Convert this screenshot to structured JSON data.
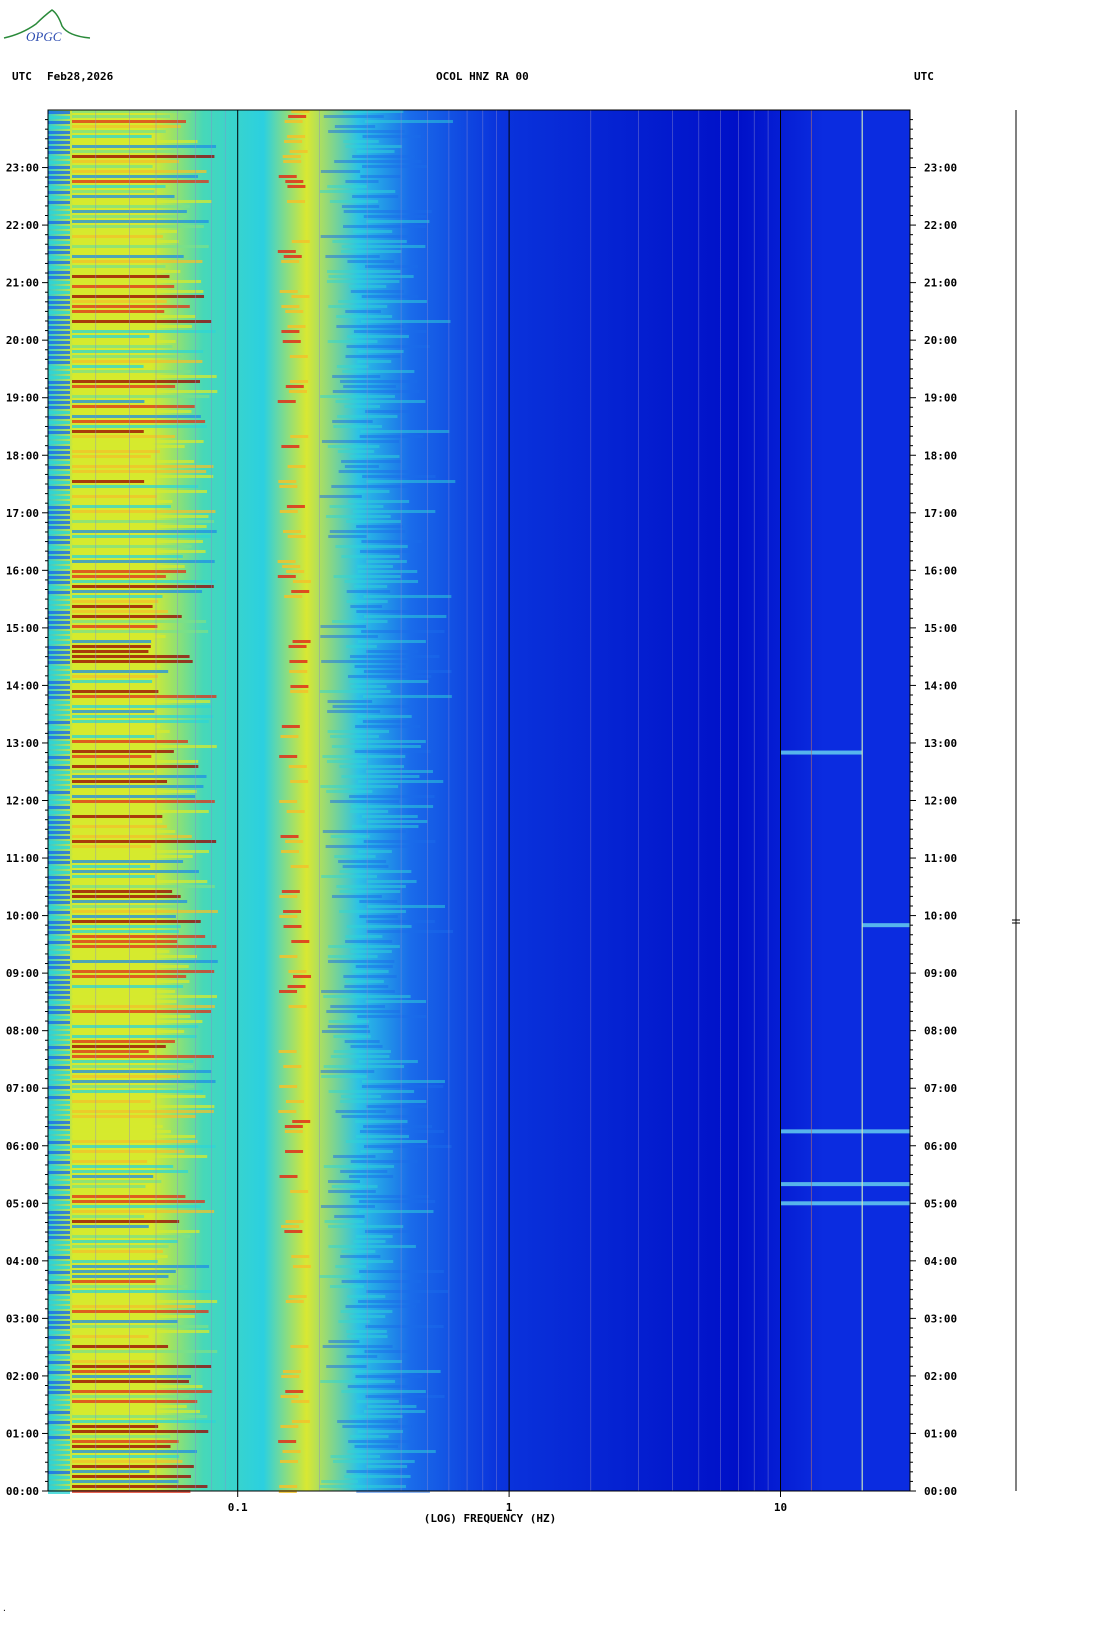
{
  "header": {
    "left_label": "UTC",
    "date": "Feb28,2026",
    "station": "OCOL HNZ RA 00",
    "right_label": "UTC"
  },
  "logo": {
    "text": "OPGC"
  },
  "chart_data": {
    "type": "heatmap",
    "title": "OCOL HNZ RA 00",
    "xlabel": "(LOG) FREQUENCY (HZ)",
    "x_scale": "log",
    "x_ticks": [
      {
        "value": 0.1,
        "label": "0.1"
      },
      {
        "value": 1,
        "label": "1"
      },
      {
        "value": 10,
        "label": "10"
      }
    ],
    "xlim": [
      0.02,
      30
    ],
    "ylabel": "UTC",
    "y_ticks": [
      "00:00",
      "01:00",
      "02:00",
      "03:00",
      "04:00",
      "05:00",
      "06:00",
      "07:00",
      "08:00",
      "09:00",
      "10:00",
      "11:00",
      "12:00",
      "13:00",
      "14:00",
      "15:00",
      "16:00",
      "17:00",
      "18:00",
      "19:00",
      "20:00",
      "21:00",
      "22:00",
      "23:00"
    ],
    "ylim_hours": [
      0,
      24
    ],
    "colormap": [
      "#0000c0",
      "#0a3ae8",
      "#1f8fe6",
      "#2dd6d6",
      "#79e08a",
      "#d6ea2e",
      "#f2c22a",
      "#e0301a",
      "#a00000"
    ],
    "events": [
      {
        "time": "05:00",
        "freq_band": "10-30 Hz"
      },
      {
        "time": "05:20",
        "freq_band": "10-30 Hz"
      },
      {
        "time": "06:15",
        "freq_band": "10-30 Hz"
      },
      {
        "time": "09:50",
        "freq_band": "20-30 Hz"
      },
      {
        "time": "12:50",
        "freq_band": "10-20 Hz"
      }
    ]
  }
}
